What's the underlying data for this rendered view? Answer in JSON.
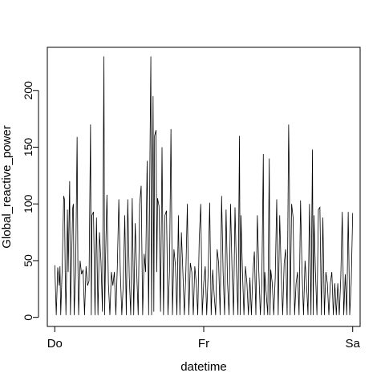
{
  "chart_data": {
    "type": "line",
    "title": "",
    "xlabel": "datetime",
    "ylabel": "Global_reactive_power",
    "x_ticks": [
      {
        "value": 0,
        "label": "Do"
      },
      {
        "value": 1,
        "label": "Fr"
      },
      {
        "value": 2,
        "label": "Sa"
      }
    ],
    "y_ticks": [
      0,
      50,
      100,
      150,
      200
    ],
    "xlim": [
      -0.05,
      2.05
    ],
    "ylim": [
      -8,
      238
    ],
    "grid": false,
    "legend": "none",
    "series": [
      {
        "color": "#000000",
        "values": [
          [
            0.0,
            46
          ],
          [
            0.01,
            2
          ],
          [
            0.02,
            44
          ],
          [
            0.03,
            28
          ],
          [
            0.035,
            45
          ],
          [
            0.04,
            2
          ],
          [
            0.05,
            44
          ],
          [
            0.06,
            107
          ],
          [
            0.065,
            104
          ],
          [
            0.07,
            40
          ],
          [
            0.075,
            2
          ],
          [
            0.08,
            45
          ],
          [
            0.085,
            95
          ],
          [
            0.09,
            40
          ],
          [
            0.1,
            120
          ],
          [
            0.105,
            2
          ],
          [
            0.11,
            30
          ],
          [
            0.12,
            96
          ],
          [
            0.125,
            100
          ],
          [
            0.13,
            2
          ],
          [
            0.14,
            40
          ],
          [
            0.15,
            159
          ],
          [
            0.155,
            50
          ],
          [
            0.16,
            2
          ],
          [
            0.17,
            50
          ],
          [
            0.18,
            38
          ],
          [
            0.19,
            42
          ],
          [
            0.2,
            2
          ],
          [
            0.21,
            45
          ],
          [
            0.22,
            28
          ],
          [
            0.23,
            32
          ],
          [
            0.24,
            170
          ],
          [
            0.245,
            2
          ],
          [
            0.25,
            90
          ],
          [
            0.26,
            93
          ],
          [
            0.27,
            2
          ],
          [
            0.28,
            88
          ],
          [
            0.29,
            2
          ],
          [
            0.3,
            75
          ],
          [
            0.31,
            50
          ],
          [
            0.32,
            5
          ],
          [
            0.33,
            230
          ],
          [
            0.335,
            2
          ],
          [
            0.34,
            45
          ],
          [
            0.35,
            108
          ],
          [
            0.36,
            30
          ],
          [
            0.37,
            2
          ],
          [
            0.38,
            40
          ],
          [
            0.39,
            28
          ],
          [
            0.4,
            40
          ],
          [
            0.41,
            2
          ],
          [
            0.42,
            45
          ],
          [
            0.43,
            104
          ],
          [
            0.44,
            40
          ],
          [
            0.45,
            2
          ],
          [
            0.46,
            30
          ],
          [
            0.47,
            90
          ],
          [
            0.48,
            2
          ],
          [
            0.49,
            104
          ],
          [
            0.5,
            36
          ],
          [
            0.51,
            2
          ],
          [
            0.52,
            105
          ],
          [
            0.53,
            2
          ],
          [
            0.54,
            83
          ],
          [
            0.55,
            40
          ],
          [
            0.56,
            2
          ],
          [
            0.57,
            100
          ],
          [
            0.58,
            116
          ],
          [
            0.59,
            2
          ],
          [
            0.6,
            56
          ],
          [
            0.61,
            40
          ],
          [
            0.62,
            138
          ],
          [
            0.63,
            2
          ],
          [
            0.64,
            157
          ],
          [
            0.645,
            230
          ],
          [
            0.65,
            2
          ],
          [
            0.66,
            195
          ],
          [
            0.665,
            5
          ],
          [
            0.67,
            160
          ],
          [
            0.68,
            165
          ],
          [
            0.685,
            40
          ],
          [
            0.69,
            105
          ],
          [
            0.7,
            98
          ],
          [
            0.71,
            5
          ],
          [
            0.72,
            150
          ],
          [
            0.73,
            2
          ],
          [
            0.74,
            90
          ],
          [
            0.75,
            94
          ],
          [
            0.76,
            2
          ],
          [
            0.77,
            40
          ],
          [
            0.78,
            166
          ],
          [
            0.79,
            2
          ],
          [
            0.8,
            60
          ],
          [
            0.81,
            46
          ],
          [
            0.82,
            2
          ],
          [
            0.83,
            90
          ],
          [
            0.84,
            2
          ],
          [
            0.85,
            75
          ],
          [
            0.86,
            40
          ],
          [
            0.87,
            2
          ],
          [
            0.88,
            40
          ],
          [
            0.89,
            100
          ],
          [
            0.9,
            2
          ],
          [
            0.91,
            48
          ],
          [
            0.92,
            40
          ],
          [
            0.93,
            2
          ],
          [
            0.94,
            45
          ],
          [
            0.95,
            30
          ],
          [
            0.96,
            2
          ],
          [
            0.97,
            70
          ],
          [
            0.98,
            100
          ],
          [
            0.99,
            2
          ],
          [
            1.0,
            30
          ],
          [
            1.01,
            45
          ],
          [
            1.02,
            2
          ],
          [
            1.03,
            40
          ],
          [
            1.04,
            101
          ],
          [
            1.05,
            2
          ],
          [
            1.06,
            42
          ],
          [
            1.07,
            20
          ],
          [
            1.08,
            2
          ],
          [
            1.09,
            60
          ],
          [
            1.1,
            48
          ],
          [
            1.11,
            2
          ],
          [
            1.12,
            107
          ],
          [
            1.13,
            40
          ],
          [
            1.14,
            2
          ],
          [
            1.15,
            95
          ],
          [
            1.16,
            30
          ],
          [
            1.17,
            2
          ],
          [
            1.18,
            100
          ],
          [
            1.19,
            42
          ],
          [
            1.2,
            2
          ],
          [
            1.21,
            97
          ],
          [
            1.22,
            40
          ],
          [
            1.23,
            2
          ],
          [
            1.24,
            160
          ],
          [
            1.245,
            2
          ],
          [
            1.25,
            90
          ],
          [
            1.26,
            40
          ],
          [
            1.27,
            2
          ],
          [
            1.28,
            45
          ],
          [
            1.29,
            30
          ],
          [
            1.3,
            2
          ],
          [
            1.31,
            35
          ],
          [
            1.32,
            2
          ],
          [
            1.33,
            40
          ],
          [
            1.34,
            58
          ],
          [
            1.35,
            2
          ],
          [
            1.36,
            90
          ],
          [
            1.37,
            40
          ],
          [
            1.38,
            2
          ],
          [
            1.39,
            30
          ],
          [
            1.4,
            144
          ],
          [
            1.405,
            2
          ],
          [
            1.41,
            40
          ],
          [
            1.42,
            20
          ],
          [
            1.43,
            2
          ],
          [
            1.44,
            140
          ],
          [
            1.445,
            2
          ],
          [
            1.45,
            42
          ],
          [
            1.46,
            30
          ],
          [
            1.47,
            2
          ],
          [
            1.48,
            35
          ],
          [
            1.49,
            104
          ],
          [
            1.5,
            2
          ],
          [
            1.51,
            90
          ],
          [
            1.52,
            40
          ],
          [
            1.53,
            2
          ],
          [
            1.54,
            48
          ],
          [
            1.55,
            60
          ],
          [
            1.56,
            2
          ],
          [
            1.57,
            170
          ],
          [
            1.575,
            120
          ],
          [
            1.58,
            2
          ],
          [
            1.59,
            100
          ],
          [
            1.6,
            88
          ],
          [
            1.61,
            2
          ],
          [
            1.62,
            30
          ],
          [
            1.63,
            40
          ],
          [
            1.64,
            2
          ],
          [
            1.65,
            103
          ],
          [
            1.66,
            40
          ],
          [
            1.67,
            2
          ],
          [
            1.68,
            50
          ],
          [
            1.69,
            30
          ],
          [
            1.7,
            2
          ],
          [
            1.71,
            100
          ],
          [
            1.72,
            2
          ],
          [
            1.73,
            148
          ],
          [
            1.735,
            2
          ],
          [
            1.74,
            90
          ],
          [
            1.75,
            40
          ],
          [
            1.76,
            2
          ],
          [
            1.77,
            95
          ],
          [
            1.78,
            97
          ],
          [
            1.79,
            2
          ],
          [
            1.8,
            88
          ],
          [
            1.81,
            2
          ],
          [
            1.82,
            40
          ],
          [
            1.83,
            30
          ],
          [
            1.84,
            2
          ],
          [
            1.85,
            30
          ],
          [
            1.86,
            40
          ],
          [
            1.87,
            2
          ],
          [
            1.88,
            30
          ],
          [
            1.89,
            2
          ],
          [
            1.9,
            30
          ],
          [
            1.91,
            2
          ],
          [
            1.92,
            35
          ],
          [
            1.93,
            93
          ],
          [
            1.94,
            2
          ],
          [
            1.95,
            38
          ],
          [
            1.96,
            2
          ],
          [
            1.97,
            93
          ],
          [
            1.98,
            2
          ],
          [
            1.99,
            30
          ],
          [
            2.0,
            92
          ]
        ]
      }
    ]
  }
}
